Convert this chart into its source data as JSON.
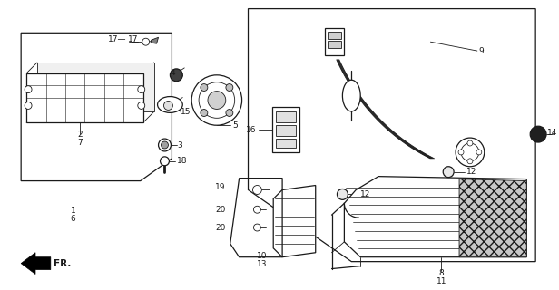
{
  "bg_color": "#ffffff",
  "line_color": "#1a1a1a",
  "fig_width": 6.16,
  "fig_height": 3.2,
  "dpi": 100
}
